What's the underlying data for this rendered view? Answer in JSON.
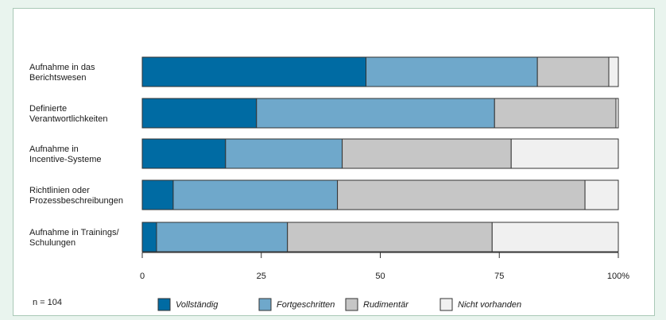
{
  "chart_data": {
    "type": "bar",
    "orientation": "horizontal",
    "stacked": true,
    "categories": [
      [
        "Aufnahme in das",
        "Berichtswesen"
      ],
      [
        "Definierte",
        "Verantwortlichkeiten"
      ],
      [
        "Aufnahme in",
        "Incentive-Systeme"
      ],
      [
        "Richtlinien oder",
        "Prozessbeschreibungen"
      ],
      [
        "Aufnahme in Trainings/",
        "Schulungen"
      ]
    ],
    "series": [
      {
        "name": "Vollständig",
        "color": "#006ba3",
        "values": [
          47,
          24,
          17.5,
          6.5,
          3
        ]
      },
      {
        "name": "Fortgeschritten",
        "color": "#6fa8cb",
        "values": [
          36,
          50,
          24.5,
          34.5,
          27.5
        ]
      },
      {
        "name": "Rudimentär",
        "color": "#c6c6c6",
        "values": [
          15,
          25.5,
          35.5,
          52,
          43
        ]
      },
      {
        "name": "Nicht vorhanden",
        "color": "#f0f0f0",
        "values": [
          2,
          0.5,
          22.5,
          7,
          26.5
        ]
      }
    ],
    "xlim": [
      0,
      100
    ],
    "x_ticks": [
      "0",
      "25",
      "50",
      "75",
      "100%"
    ],
    "legend_position": "bottom",
    "grid": false,
    "annotation": "n = 104"
  }
}
